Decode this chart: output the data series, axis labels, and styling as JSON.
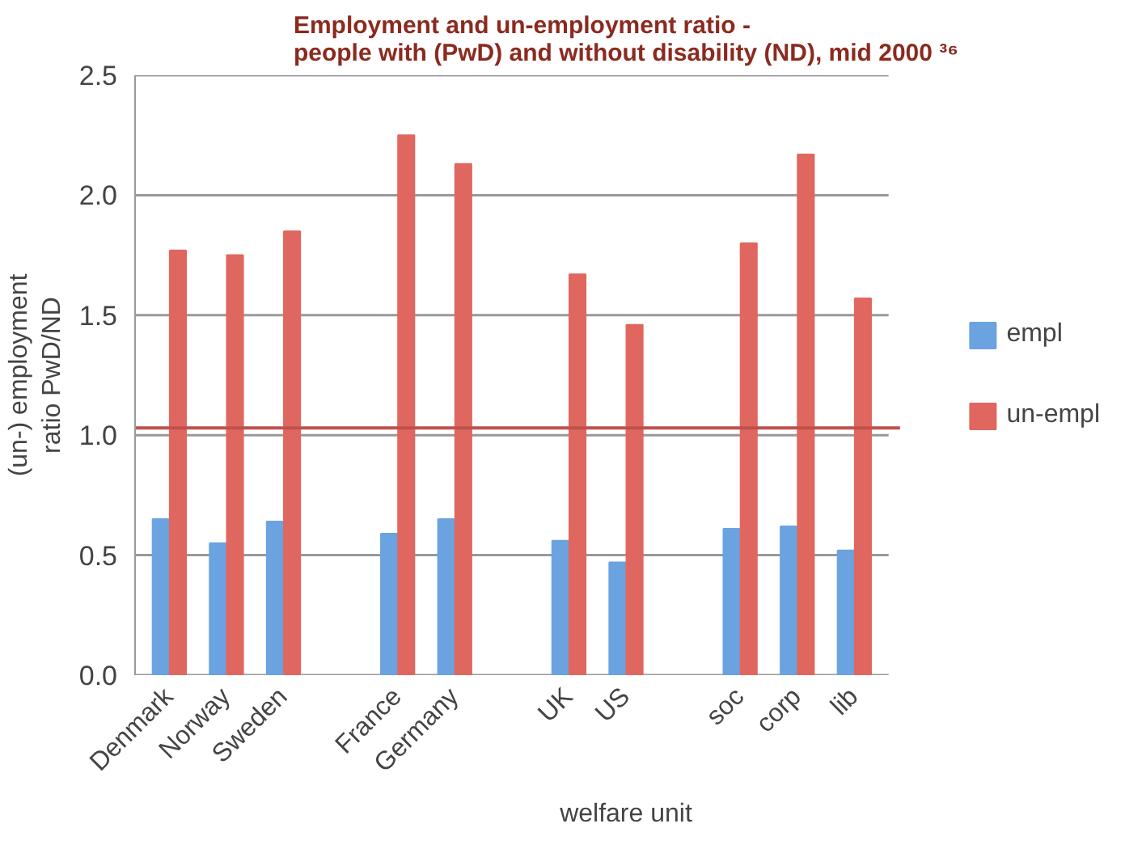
{
  "chart_data": {
    "type": "bar",
    "title": "Employment and un-employment ratio -\npeople with (PwD) and without disability (ND), mid 2000 ³⁶",
    "xlabel": "welfare unit",
    "ylabel": "(un-) employment\nratio PwD/ND",
    "categories": [
      "Denmark",
      "Norway",
      "Sweden",
      null,
      "France",
      "Germany",
      null,
      "UK",
      "US",
      null,
      "soc",
      "corp",
      "lib"
    ],
    "series": [
      {
        "name": "empl",
        "color": "#6aa3e0",
        "values": [
          0.65,
          0.55,
          0.64,
          null,
          0.59,
          0.65,
          null,
          0.56,
          0.47,
          null,
          0.61,
          0.62,
          0.52
        ]
      },
      {
        "name": "un-empl",
        "color": "#e0675f",
        "values": [
          1.77,
          1.75,
          1.85,
          null,
          2.25,
          2.13,
          null,
          1.67,
          1.46,
          null,
          1.8,
          2.17,
          1.57
        ]
      }
    ],
    "ylim": [
      0,
      2.5
    ],
    "yticks": [
      {
        "value": 0,
        "label": "0.0"
      },
      {
        "value": 0.5,
        "label": "0.5"
      },
      {
        "value": 1,
        "label": "1.0"
      },
      {
        "value": 1.5,
        "label": "1.5"
      },
      {
        "value": 2,
        "label": "2.0"
      },
      {
        "value": 2.5,
        "label": "2.5"
      }
    ],
    "ref_lines": [
      {
        "axis": "y",
        "value": 1.03,
        "color": "#c0504d"
      }
    ],
    "grid": "y",
    "legend": "right"
  }
}
